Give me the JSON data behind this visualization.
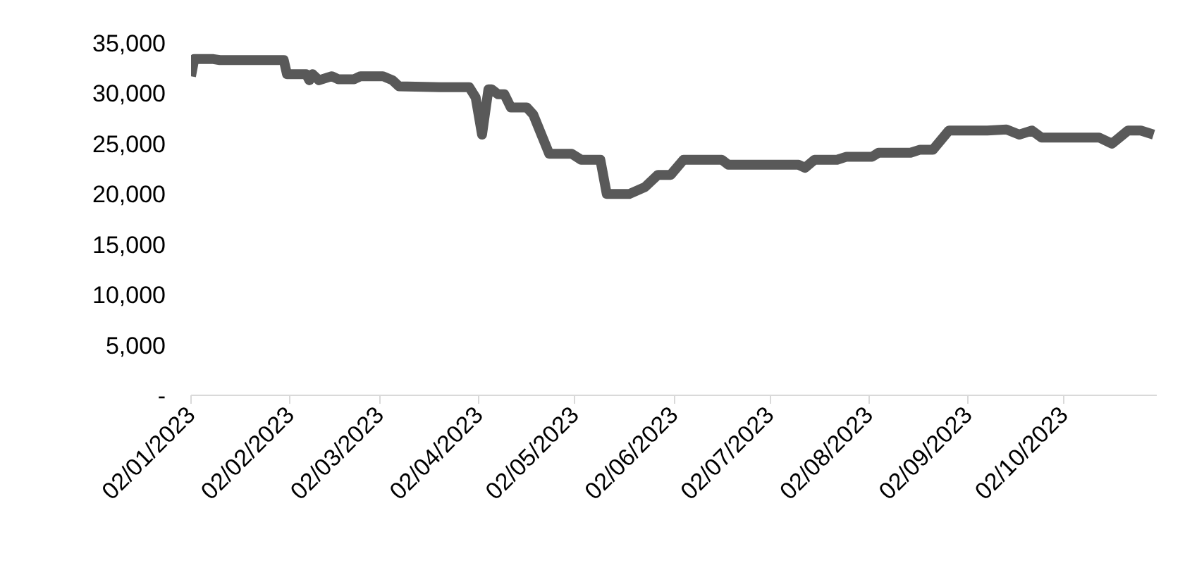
{
  "chart_data": {
    "type": "line",
    "color": "#595959",
    "line_style": "solid",
    "marker": "none",
    "grid": false,
    "x": [
      "2023-01-02",
      "2023-01-03",
      "2023-01-09",
      "2023-01-11",
      "2023-01-31",
      "2023-02-01",
      "2023-02-07",
      "2023-02-08",
      "2023-02-09",
      "2023-02-11",
      "2023-02-15",
      "2023-02-17",
      "2023-02-22",
      "2023-02-24",
      "2023-03-03",
      "2023-03-06",
      "2023-03-08",
      "2023-03-21",
      "2023-03-30",
      "2023-04-01",
      "2023-04-03",
      "2023-04-05",
      "2023-04-06",
      "2023-04-08",
      "2023-04-10",
      "2023-04-12",
      "2023-04-17",
      "2023-04-19",
      "2023-04-24",
      "2023-05-01",
      "2023-05-04",
      "2023-05-10",
      "2023-05-12",
      "2023-05-19",
      "2023-05-24",
      "2023-05-28",
      "2023-06-01",
      "2023-06-05",
      "2023-06-17",
      "2023-06-19",
      "2023-07-11",
      "2023-07-13",
      "2023-07-16",
      "2023-07-23",
      "2023-07-26",
      "2023-08-03",
      "2023-08-05",
      "2023-08-15",
      "2023-08-18",
      "2023-08-22",
      "2023-08-27",
      "2023-09-08",
      "2023-09-14",
      "2023-09-18",
      "2023-09-22",
      "2023-09-25",
      "2023-10-13",
      "2023-10-17",
      "2023-10-22",
      "2023-10-26",
      "2023-10-30"
    ],
    "values": [
      31700,
      33400,
      33400,
      33300,
      33300,
      31900,
      31900,
      31300,
      31900,
      31300,
      31700,
      31400,
      31400,
      31700,
      31700,
      31300,
      30700,
      30600,
      30600,
      29600,
      25900,
      30400,
      30400,
      29900,
      29900,
      28600,
      28600,
      27900,
      24000,
      24000,
      23400,
      23400,
      20000,
      20000,
      20700,
      21900,
      21900,
      23400,
      23400,
      22900,
      22900,
      22600,
      23400,
      23400,
      23700,
      23700,
      24100,
      24100,
      24400,
      24400,
      26300,
      26300,
      26400,
      25900,
      26300,
      25600,
      25600,
      25000,
      26300,
      26300,
      25900
    ],
    "xlim": [
      "2023-01-02",
      "2023-10-31"
    ],
    "xticks": [
      {
        "value": "2023-01-02",
        "label": "02/01/2023"
      },
      {
        "value": "2023-02-02",
        "label": "02/02/2023"
      },
      {
        "value": "2023-03-02",
        "label": "02/03/2023"
      },
      {
        "value": "2023-04-02",
        "label": "02/04/2023"
      },
      {
        "value": "2023-05-02",
        "label": "02/05/2023"
      },
      {
        "value": "2023-06-02",
        "label": "02/06/2023"
      },
      {
        "value": "2023-07-02",
        "label": "02/07/2023"
      },
      {
        "value": "2023-08-02",
        "label": "02/08/2023"
      },
      {
        "value": "2023-09-02",
        "label": "02/09/2023"
      },
      {
        "value": "2023-10-02",
        "label": "02/10/2023"
      }
    ],
    "ylim": [
      0,
      35000
    ],
    "yticks": [
      {
        "value": 0,
        "label": "-"
      },
      {
        "value": 5000,
        "label": "5,000"
      },
      {
        "value": 10000,
        "label": "10,000"
      },
      {
        "value": 15000,
        "label": "15,000"
      },
      {
        "value": 20000,
        "label": "20,000"
      },
      {
        "value": 25000,
        "label": "25,000"
      },
      {
        "value": 30000,
        "label": "30,000"
      },
      {
        "value": 35000,
        "label": "35,000"
      }
    ]
  }
}
